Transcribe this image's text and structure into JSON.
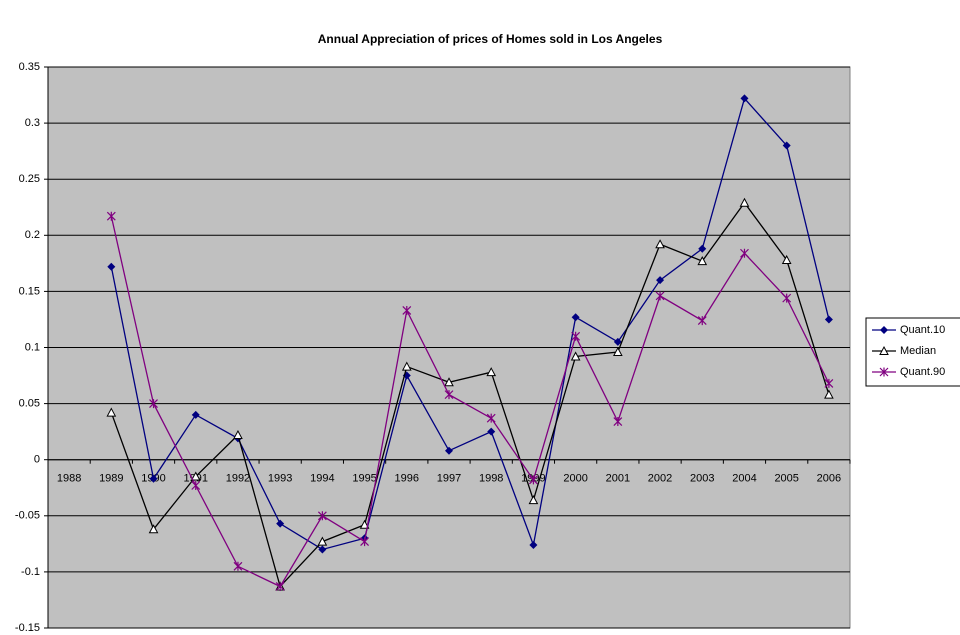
{
  "chart_data": {
    "type": "line",
    "title": "Annual Appreciation of prices of Homes sold in Los Angeles",
    "categories": [
      "1988",
      "1989",
      "1990",
      "1991",
      "1992",
      "1993",
      "1994",
      "1995",
      "1996",
      "1997",
      "1998",
      "1999",
      "2000",
      "2001",
      "2002",
      "2003",
      "2004",
      "2005",
      "2006"
    ],
    "series": [
      {
        "name": "Quant.10",
        "color": "#000080",
        "marker": "diamond",
        "values": [
          null,
          0.172,
          -0.017,
          0.04,
          0.019,
          -0.057,
          -0.08,
          -0.07,
          0.075,
          0.008,
          0.025,
          -0.076,
          0.127,
          0.105,
          0.16,
          0.188,
          0.322,
          0.28,
          0.125
        ]
      },
      {
        "name": "Median",
        "color": "#000000",
        "marker": "triangle",
        "values": [
          null,
          0.042,
          -0.062,
          -0.015,
          0.022,
          -0.113,
          -0.073,
          -0.058,
          0.083,
          0.069,
          0.078,
          -0.036,
          0.092,
          0.096,
          0.192,
          0.177,
          0.229,
          0.178,
          0.058
        ]
      },
      {
        "name": "Quant.90",
        "color": "#800080",
        "marker": "star",
        "values": [
          null,
          0.217,
          0.05,
          -0.023,
          -0.095,
          -0.113,
          -0.05,
          -0.073,
          0.133,
          0.058,
          0.037,
          -0.018,
          0.11,
          0.034,
          0.146,
          0.124,
          0.184,
          0.144,
          0.068
        ]
      }
    ],
    "ylim": [
      -0.15,
      0.35
    ],
    "yticks": [
      -0.15,
      -0.1,
      -0.05,
      0,
      0.05,
      0.1,
      0.15,
      0.2,
      0.25,
      0.3,
      0.35
    ],
    "grid": true,
    "legend": "right",
    "background": "#c0c0c0"
  }
}
